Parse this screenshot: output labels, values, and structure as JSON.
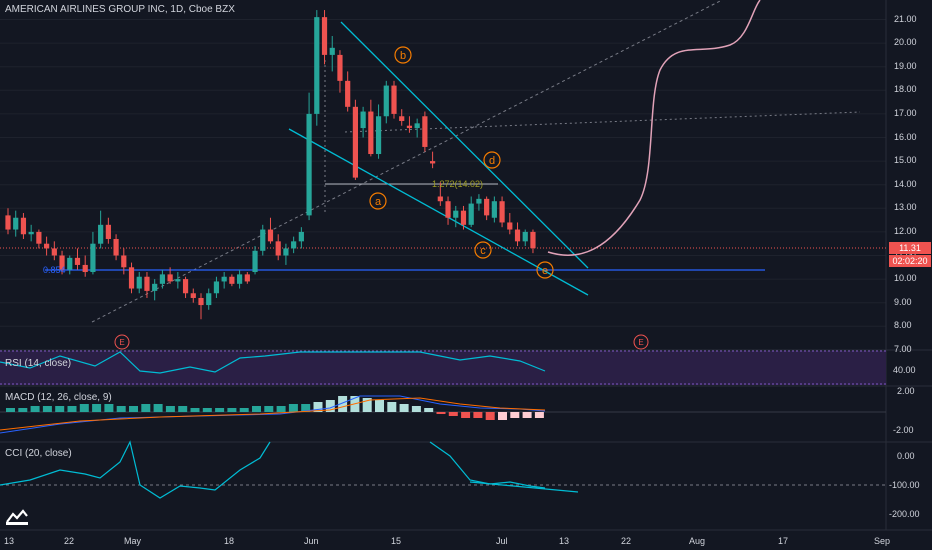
{
  "header": {
    "title": "AMERICAN AIRLINES GROUP INC, 1D, Cboe BZX"
  },
  "price_axis": {
    "ticks": [
      "21.00",
      "20.00",
      "19.00",
      "18.00",
      "17.00",
      "16.00",
      "15.00",
      "14.00",
      "13.00",
      "12.00",
      "11.00",
      "10.00",
      "9.00",
      "8.00",
      "7.00"
    ]
  },
  "current_price": {
    "value": "11.31",
    "countdown": "02:02:20"
  },
  "time_axis": {
    "labels": [
      "13",
      "22",
      "May",
      "18",
      "Jun",
      "15",
      "Jul",
      "13",
      "22",
      "Aug",
      "17",
      "Sep"
    ]
  },
  "annotations": {
    "wave_labels": [
      "a",
      "b",
      "c",
      "d",
      "e"
    ],
    "fib_label": "1.272(14.02)",
    "fib_left_label": "0.854",
    "earnings_markers": [
      "E",
      "E"
    ]
  },
  "panes": {
    "rsi": {
      "title": "RSI (14, close)",
      "ticks": [
        "40.00"
      ]
    },
    "macd": {
      "title": "MACD (12, 26, close, 9)",
      "ticks": [
        "2.00",
        "-2.00"
      ]
    },
    "cci": {
      "title": "CCI (20, close)",
      "ticks": [
        "0.00",
        "-100.00",
        "-200.00"
      ]
    }
  },
  "colors": {
    "background": "#131722",
    "up_candle": "#26a69a",
    "down_candle": "#ef5350",
    "trend_line": "#00bcd4",
    "wave_label": "#f57c00",
    "horizontal_line": "#2962ff",
    "projection_curve": "#e1a2b8",
    "rsi_band": "#7e57c2",
    "price_tag": "#ef5350",
    "countdown_tag": "#ef5350"
  },
  "chart_data": {
    "type": "candlestick",
    "title": "AMERICAN AIRLINES GROUP INC, 1D, Cboe BZX",
    "ylim": [
      7,
      21.5
    ],
    "candles": [
      {
        "o": 12.7,
        "h": 13.0,
        "l": 11.9,
        "c": 12.1
      },
      {
        "o": 12.1,
        "h": 12.9,
        "l": 11.8,
        "c": 12.6
      },
      {
        "o": 12.6,
        "h": 12.8,
        "l": 11.7,
        "c": 11.9
      },
      {
        "o": 11.9,
        "h": 12.3,
        "l": 11.6,
        "c": 12.0
      },
      {
        "o": 12.0,
        "h": 12.1,
        "l": 11.3,
        "c": 11.5
      },
      {
        "o": 11.5,
        "h": 11.8,
        "l": 11.0,
        "c": 11.3
      },
      {
        "o": 11.3,
        "h": 11.6,
        "l": 10.8,
        "c": 11.0
      },
      {
        "o": 11.0,
        "h": 11.2,
        "l": 10.2,
        "c": 10.4
      },
      {
        "o": 10.4,
        "h": 11.0,
        "l": 10.2,
        "c": 10.9
      },
      {
        "o": 10.9,
        "h": 11.3,
        "l": 10.4,
        "c": 10.6
      },
      {
        "o": 10.6,
        "h": 11.0,
        "l": 10.1,
        "c": 10.3
      },
      {
        "o": 10.3,
        "h": 12.0,
        "l": 10.2,
        "c": 11.5
      },
      {
        "o": 11.5,
        "h": 12.9,
        "l": 11.3,
        "c": 12.3
      },
      {
        "o": 12.3,
        "h": 12.6,
        "l": 11.5,
        "c": 11.7
      },
      {
        "o": 11.7,
        "h": 11.9,
        "l": 10.8,
        "c": 11.0
      },
      {
        "o": 11.0,
        "h": 11.3,
        "l": 10.2,
        "c": 10.5
      },
      {
        "o": 10.5,
        "h": 10.7,
        "l": 9.4,
        "c": 9.6
      },
      {
        "o": 9.6,
        "h": 10.3,
        "l": 9.4,
        "c": 10.1
      },
      {
        "o": 10.1,
        "h": 10.3,
        "l": 9.2,
        "c": 9.5
      },
      {
        "o": 9.5,
        "h": 10.0,
        "l": 9.1,
        "c": 9.8
      },
      {
        "o": 9.8,
        "h": 10.4,
        "l": 9.6,
        "c": 10.2
      },
      {
        "o": 10.2,
        "h": 10.5,
        "l": 9.8,
        "c": 9.9
      },
      {
        "o": 9.9,
        "h": 10.3,
        "l": 9.6,
        "c": 10.0
      },
      {
        "o": 10.0,
        "h": 10.1,
        "l": 9.2,
        "c": 9.4
      },
      {
        "o": 9.4,
        "h": 9.6,
        "l": 9.0,
        "c": 9.2
      },
      {
        "o": 9.2,
        "h": 9.4,
        "l": 8.3,
        "c": 8.9
      },
      {
        "o": 8.9,
        "h": 9.6,
        "l": 8.7,
        "c": 9.4
      },
      {
        "o": 9.4,
        "h": 10.1,
        "l": 9.2,
        "c": 9.9
      },
      {
        "o": 9.9,
        "h": 10.3,
        "l": 9.6,
        "c": 10.1
      },
      {
        "o": 10.1,
        "h": 10.2,
        "l": 9.7,
        "c": 9.8
      },
      {
        "o": 9.8,
        "h": 10.4,
        "l": 9.6,
        "c": 10.2
      },
      {
        "o": 10.2,
        "h": 10.3,
        "l": 9.8,
        "c": 9.9
      },
      {
        "o": 10.3,
        "h": 11.4,
        "l": 10.2,
        "c": 11.2
      },
      {
        "o": 11.2,
        "h": 12.3,
        "l": 11.0,
        "c": 12.1
      },
      {
        "o": 12.1,
        "h": 12.6,
        "l": 11.5,
        "c": 11.6
      },
      {
        "o": 11.6,
        "h": 11.9,
        "l": 10.8,
        "c": 11.0
      },
      {
        "o": 11.0,
        "h": 11.5,
        "l": 10.6,
        "c": 11.3
      },
      {
        "o": 11.3,
        "h": 11.8,
        "l": 11.1,
        "c": 11.6
      },
      {
        "o": 11.6,
        "h": 12.2,
        "l": 11.3,
        "c": 12.0
      },
      {
        "o": 12.7,
        "h": 17.9,
        "l": 12.5,
        "c": 17.0
      },
      {
        "o": 17.0,
        "h": 21.4,
        "l": 16.5,
        "c": 21.1
      },
      {
        "o": 21.1,
        "h": 21.4,
        "l": 19.1,
        "c": 19.5
      },
      {
        "o": 19.5,
        "h": 20.3,
        "l": 18.8,
        "c": 19.8
      },
      {
        "o": 19.5,
        "h": 19.7,
        "l": 17.9,
        "c": 18.4
      },
      {
        "o": 18.4,
        "h": 18.8,
        "l": 17.1,
        "c": 17.3
      },
      {
        "o": 17.3,
        "h": 17.6,
        "l": 14.2,
        "c": 14.3
      },
      {
        "o": 16.4,
        "h": 17.3,
        "l": 16.0,
        "c": 17.1
      },
      {
        "o": 17.1,
        "h": 17.6,
        "l": 15.2,
        "c": 15.3
      },
      {
        "o": 15.3,
        "h": 17.4,
        "l": 15.1,
        "c": 16.9
      },
      {
        "o": 16.9,
        "h": 18.4,
        "l": 16.6,
        "c": 18.2
      },
      {
        "o": 18.2,
        "h": 18.4,
        "l": 16.8,
        "c": 17.0
      },
      {
        "o": 16.9,
        "h": 17.2,
        "l": 16.5,
        "c": 16.7
      },
      {
        "o": 16.5,
        "h": 16.9,
        "l": 16.2,
        "c": 16.4
      },
      {
        "o": 16.4,
        "h": 16.8,
        "l": 16.0,
        "c": 16.6
      },
      {
        "o": 16.9,
        "h": 17.1,
        "l": 15.4,
        "c": 15.6
      },
      {
        "o": 15.0,
        "h": 15.4,
        "l": 14.7,
        "c": 14.9
      },
      {
        "o": 13.5,
        "h": 14.1,
        "l": 13.1,
        "c": 13.3
      },
      {
        "o": 13.3,
        "h": 13.5,
        "l": 12.3,
        "c": 12.6
      },
      {
        "o": 12.6,
        "h": 13.1,
        "l": 12.2,
        "c": 12.9
      },
      {
        "o": 12.9,
        "h": 13.1,
        "l": 12.1,
        "c": 12.3
      },
      {
        "o": 12.3,
        "h": 13.5,
        "l": 12.2,
        "c": 13.2
      },
      {
        "o": 13.2,
        "h": 13.6,
        "l": 12.9,
        "c": 13.4
      },
      {
        "o": 13.4,
        "h": 13.5,
        "l": 12.5,
        "c": 12.7
      },
      {
        "o": 12.6,
        "h": 13.5,
        "l": 12.4,
        "c": 13.3
      },
      {
        "o": 13.3,
        "h": 13.5,
        "l": 12.2,
        "c": 12.4
      },
      {
        "o": 12.4,
        "h": 12.8,
        "l": 11.9,
        "c": 12.1
      },
      {
        "o": 12.1,
        "h": 12.4,
        "l": 11.4,
        "c": 11.6
      },
      {
        "o": 11.6,
        "h": 12.1,
        "l": 11.4,
        "c": 12.0
      },
      {
        "o": 12.0,
        "h": 12.1,
        "l": 11.1,
        "c": 11.31
      }
    ]
  }
}
